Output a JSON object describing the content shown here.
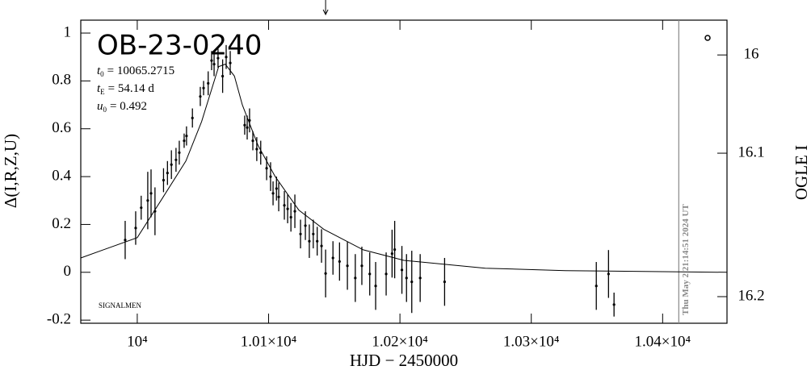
{
  "chart_data": {
    "type": "scatter",
    "title": "OB-23-0240",
    "xlabel": "HJD − 2450000",
    "ylabel": "Δ(I,R,Z,U)",
    "y2label": "OGLE I",
    "annotations": [
      {
        "symbol": "t",
        "sub": "0",
        "text": "= 10065.2715"
      },
      {
        "symbol": "t",
        "sub": "E",
        "text": "= 54.14 d"
      },
      {
        "symbol": "u",
        "sub": "0",
        "text": "= 0.492"
      }
    ],
    "credit": "SIGNALMEN",
    "timestamp": "Thu May  2 21:14:51 2024 UT",
    "timestamp_x": 10412.3,
    "arrow_x": 10143.4,
    "xlim": [
      9957,
      10449
    ],
    "xticks": [
      {
        "value": 10000,
        "label": "10⁴"
      },
      {
        "value": 10100,
        "label": "1.01×10⁴"
      },
      {
        "value": 10200,
        "label": "1.02×10⁴"
      },
      {
        "value": 10300,
        "label": "1.03×10⁴"
      },
      {
        "value": 10400,
        "label": "1.04×10⁴"
      }
    ],
    "ylim": [
      -0.213,
      1.054
    ],
    "yticks": [
      -0.2,
      0,
      0.2,
      0.4,
      0.6,
      0.8,
      1
    ],
    "y2lim": [
      15.953,
      16.215
    ],
    "y2ticks": [
      16,
      16.1,
      16.2
    ],
    "y2scale": "magnitude",
    "series": [
      {
        "color": "#000000",
        "x": [
          9990.8,
          9998.8,
          10003,
          10008,
          10010.5,
          10013.5,
          10020,
          10023,
          10026,
          10029.5,
          10032,
          10035.7,
          10037.5,
          10042,
          10048,
          10050.5,
          10054,
          10056.6,
          10058.5,
          10061.5,
          10065,
          10067.7,
          10070.8,
          10081.8,
          10083.7,
          10085.5,
          10088,
          10091,
          10094,
          10098.5,
          10101.5,
          10103.4,
          10106,
          10107.7,
          10112,
          10114.5,
          10117,
          10120,
          10124.3,
          10128,
          10131,
          10134,
          10137,
          10140.3,
          10143.4,
          10149,
          10154,
          10160,
          10166,
          10171,
          10177,
          10181.5,
          10189.5,
          10194,
          10196,
          10201.5,
          10205,
          10209,
          10215.4,
          10234,
          10349.5,
          10358.8,
          10363
        ],
        "values": [
          0.135,
          0.185,
          0.27,
          0.3,
          0.33,
          0.255,
          0.385,
          0.415,
          0.45,
          0.47,
          0.5,
          0.55,
          0.57,
          0.645,
          0.735,
          0.77,
          0.79,
          0.885,
          0.87,
          0.895,
          0.82,
          0.9,
          0.875,
          0.615,
          0.605,
          0.635,
          0.55,
          0.515,
          0.5,
          0.435,
          0.4,
          0.33,
          0.35,
          0.315,
          0.28,
          0.265,
          0.23,
          0.255,
          0.16,
          0.195,
          0.13,
          0.16,
          0.13,
          0.11,
          -0.005,
          0.06,
          0.045,
          0.027,
          -0.024,
          0.027,
          -0.007,
          -0.057,
          -0.007,
          0.078,
          0.095,
          0.01,
          -0.024,
          -0.04,
          -0.024,
          -0.04,
          -0.057,
          -0.007,
          -0.135
        ],
        "errors": [
          0.08,
          0.07,
          0.05,
          0.12,
          0.1,
          0.1,
          0.05,
          0.05,
          0.06,
          0.05,
          0.05,
          0.03,
          0.04,
          0.04,
          0.04,
          0.03,
          0.05,
          0.04,
          0.05,
          0.04,
          0.07,
          0.05,
          0.05,
          0.04,
          0.05,
          0.05,
          0.04,
          0.05,
          0.05,
          0.05,
          0.06,
          0.05,
          0.05,
          0.06,
          0.06,
          0.06,
          0.06,
          0.07,
          0.06,
          0.06,
          0.07,
          0.06,
          0.06,
          0.07,
          0.1,
          0.07,
          0.08,
          0.1,
          0.1,
          0.08,
          0.09,
          0.1,
          0.09,
          0.1,
          0.12,
          0.1,
          0.1,
          0.13,
          0.1,
          0.1,
          0.1,
          0.1,
          0.05
        ]
      }
    ],
    "model": {
      "color": "#000000",
      "x": [
        9957,
        10000,
        10018,
        10037,
        10049,
        10062,
        10067,
        10074,
        10080,
        10092,
        10105,
        10123,
        10142,
        10172,
        10203,
        10265,
        10326,
        10449
      ],
      "values": [
        0.06,
        0.145,
        0.3,
        0.465,
        0.63,
        0.86,
        0.87,
        0.82,
        0.7,
        0.53,
        0.4,
        0.26,
        0.18,
        0.094,
        0.05,
        0.017,
        0.007,
        0
      ]
    }
  }
}
